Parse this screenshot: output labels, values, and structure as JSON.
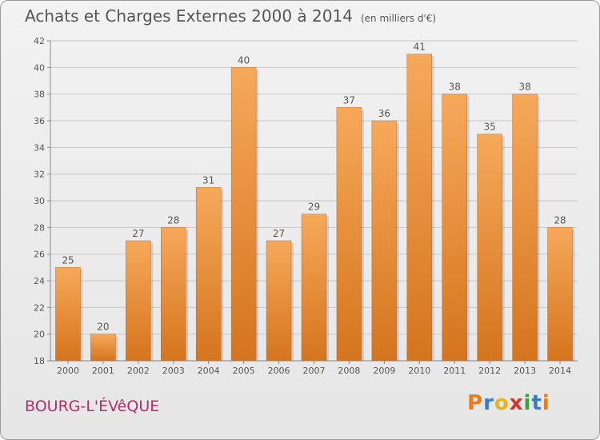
{
  "header": {
    "title": "Achats et Charges Externes 2000 à 2014",
    "unit": "(en milliers d'€)"
  },
  "footer": {
    "commune": "BOURG-L'ÉVêQUE",
    "logo_letters": [
      "P",
      "r",
      "o",
      "x",
      "i",
      "t",
      "i"
    ],
    "logo_colors": [
      "#e87c1e",
      "#3a7bc8",
      "#e8b41e",
      "#d0342c",
      "#3aa040",
      "#3a7bc8",
      "#e87c1e"
    ]
  },
  "colors": {
    "bar_light": "#f6a95a",
    "bar_dark": "#d5741e",
    "grid": "#c8c8c8",
    "axis_text": "#555555",
    "commune": "#b0306a"
  },
  "chart_data": {
    "type": "bar",
    "title": "Achats et Charges Externes 2000 à 2014",
    "subtitle": "(en milliers d'€)",
    "xlabel": "",
    "ylabel": "",
    "categories": [
      "2000",
      "2001",
      "2002",
      "2003",
      "2004",
      "2005",
      "2006",
      "2007",
      "2008",
      "2009",
      "2010",
      "2011",
      "2012",
      "2013",
      "2014"
    ],
    "values": [
      25,
      20,
      27,
      28,
      31,
      40,
      27,
      29,
      37,
      36,
      41,
      38,
      35,
      38,
      28
    ],
    "ylim": [
      18,
      42
    ],
    "yticks": [
      18,
      20,
      22,
      24,
      26,
      28,
      30,
      32,
      34,
      36,
      38,
      40,
      42
    ],
    "grid": true,
    "data_labels": true
  }
}
